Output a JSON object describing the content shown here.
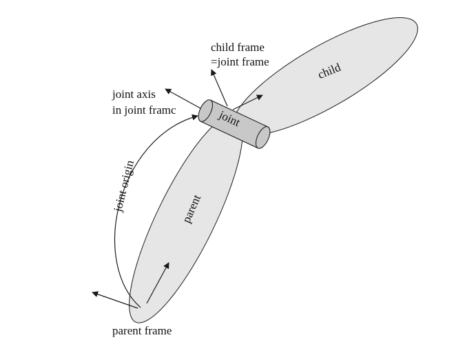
{
  "labels": {
    "child_frame_line1": "child frame",
    "child_frame_line2": "=joint frame",
    "child": "child",
    "joint_axis_line1": "joint axis",
    "joint_axis_line2": "in joint framc",
    "joint": "joint",
    "joint_origin": "joint origin",
    "parent": "parent",
    "parent_frame": "parent frame"
  },
  "colors": {
    "link_fill": "#e6e6e6",
    "joint_fill": "#c8c8c8",
    "stroke": "#1a1a1a"
  }
}
